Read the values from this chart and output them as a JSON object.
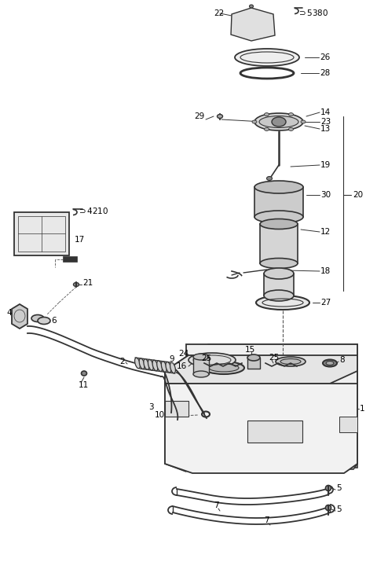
{
  "bg_color": "#ffffff",
  "line_color": "#333333",
  "figsize": [
    4.8,
    7.29
  ],
  "dpi": 100
}
